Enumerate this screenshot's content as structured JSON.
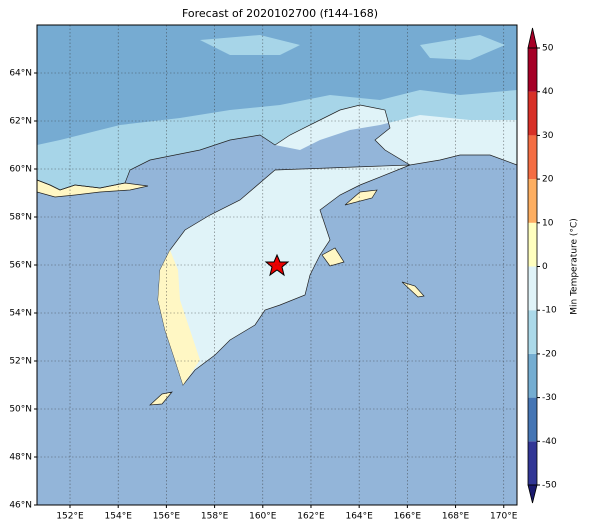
{
  "map": {
    "title": "Forecast of 2020102700 (f144-168)",
    "lon_range": [
      150.63,
      170.55
    ],
    "lat_range": [
      46,
      66
    ],
    "lon_ticks": [
      {
        "value": 152,
        "label": "152°E"
      },
      {
        "value": 154,
        "label": "154°E"
      },
      {
        "value": 156,
        "label": "156°E"
      },
      {
        "value": 158,
        "label": "158°E"
      },
      {
        "value": 160,
        "label": "160°E"
      },
      {
        "value": 162,
        "label": "162°E"
      },
      {
        "value": 164,
        "label": "164°E"
      },
      {
        "value": 166,
        "label": "166°E"
      },
      {
        "value": 168,
        "label": "168°E"
      },
      {
        "value": 170,
        "label": "170°E"
      }
    ],
    "lat_ticks": [
      {
        "value": 46,
        "label": "46°N"
      },
      {
        "value": 48,
        "label": "48°N"
      },
      {
        "value": 50,
        "label": "50°N"
      },
      {
        "value": 52,
        "label": "52°N"
      },
      {
        "value": 54,
        "label": "54°N"
      },
      {
        "value": 56,
        "label": "56°N"
      },
      {
        "value": 58,
        "label": "58°N"
      },
      {
        "value": 60,
        "label": "60°N"
      },
      {
        "value": 62,
        "label": "62°N"
      },
      {
        "value": 64,
        "label": "64°N"
      }
    ],
    "colorbar": {
      "label": "Min Temperature (°C)",
      "lim": [
        -50,
        50
      ],
      "ticks": [
        -50,
        -40,
        -30,
        -20,
        -10,
        0,
        10,
        20,
        30,
        40,
        50
      ],
      "colors": [
        "#313695",
        "#4575b4",
        "#74add1",
        "#abd9e9",
        "#e0f3f8",
        "#ffffbf",
        "#fdae61",
        "#f46d43",
        "#d73027",
        "#a50026"
      ],
      "under": "#1a1a6e",
      "over": "#a50026"
    }
  }
}
